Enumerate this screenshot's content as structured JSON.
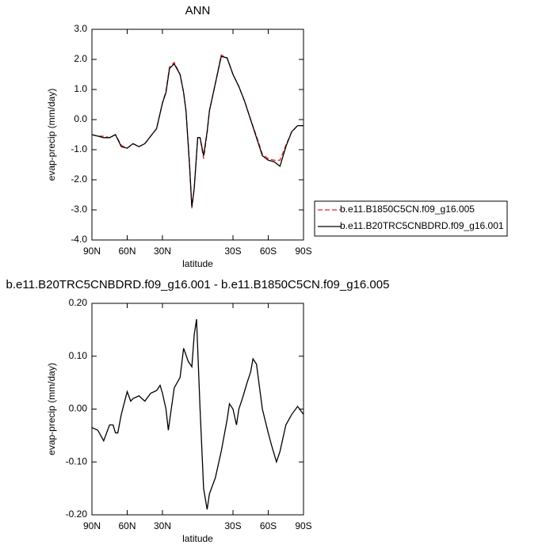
{
  "chart_data": [
    {
      "type": "line",
      "title": "ANN",
      "xlabel": "latitude",
      "ylabel": "evap-precip (mm/day)",
      "x": [
        90,
        85,
        80,
        75,
        70,
        65,
        60,
        55,
        50,
        45,
        40,
        35,
        30,
        27,
        24,
        20,
        15,
        12,
        10,
        7,
        5,
        3,
        0,
        -2,
        -5,
        -8,
        -10,
        -15,
        -20,
        -25,
        -30,
        -35,
        -40,
        -45,
        -50,
        -55,
        -60,
        -65,
        -70,
        -75,
        -80,
        -85,
        -90
      ],
      "series": [
        {
          "name": "b.e11.B1850C5CN.f09_g16.005",
          "color": "#e8262b",
          "linestyle": "dashed",
          "values": [
            -0.5,
            -0.55,
            -0.55,
            -0.6,
            -0.5,
            -0.85,
            -0.95,
            -0.8,
            -0.9,
            -0.8,
            -0.55,
            -0.3,
            0.55,
            0.95,
            1.75,
            1.9,
            1.5,
            0.9,
            0.3,
            -1.4,
            -2.95,
            -2.3,
            -0.6,
            -0.6,
            -1.3,
            -0.45,
            0.3,
            1.2,
            2.15,
            2.05,
            1.5,
            1.1,
            0.6,
            0.0,
            -0.55,
            -1.15,
            -1.3,
            -1.35,
            -1.35,
            -0.85,
            -0.4,
            -0.2,
            -0.2
          ]
        },
        {
          "name": "b.e11.B20TRC5CNBDRD.f09_g16.001",
          "color": "#000000",
          "linestyle": "solid",
          "values": [
            -0.5,
            -0.55,
            -0.6,
            -0.6,
            -0.5,
            -0.9,
            -0.95,
            -0.8,
            -0.9,
            -0.8,
            -0.55,
            -0.3,
            0.55,
            0.9,
            1.7,
            1.85,
            1.5,
            0.9,
            0.3,
            -1.5,
            -2.9,
            -2.3,
            -0.6,
            -0.6,
            -1.2,
            -0.4,
            0.3,
            1.2,
            2.1,
            2.05,
            1.5,
            1.1,
            0.6,
            0.0,
            -0.6,
            -1.2,
            -1.35,
            -1.4,
            -1.55,
            -0.9,
            -0.4,
            -0.2,
            -0.2
          ]
        }
      ],
      "xlim": [
        90,
        -90
      ],
      "ylim": [
        -4,
        3
      ],
      "xticks": [
        {
          "value": 90,
          "label": "90N"
        },
        {
          "value": 60,
          "label": "60N"
        },
        {
          "value": 30,
          "label": "30N"
        },
        {
          "value": -30,
          "label": "30S"
        },
        {
          "value": -60,
          "label": "60S"
        },
        {
          "value": -90,
          "label": "90S"
        }
      ],
      "yticks": [
        {
          "value": 3,
          "label": "3.0"
        },
        {
          "value": 2,
          "label": "2.0"
        },
        {
          "value": 1,
          "label": "1.0"
        },
        {
          "value": 0,
          "label": "0.0"
        },
        {
          "value": -1,
          "label": "-1.0"
        },
        {
          "value": -2,
          "label": "-2.0"
        },
        {
          "value": -3,
          "label": "-3.0"
        },
        {
          "value": -4,
          "label": "-4.0"
        }
      ],
      "legend": "right"
    },
    {
      "type": "line",
      "title": "b.e11.B20TRC5CNBDRD.f09_g16.001 - b.e11.B1850C5CN.f09_g16.005",
      "xlabel": "latitude",
      "ylabel": "evap-precip (mm/day)",
      "x": [
        90,
        85,
        80,
        75,
        72,
        70,
        68,
        65,
        60,
        57,
        55,
        50,
        45,
        40,
        35,
        32,
        30,
        27,
        25,
        20,
        15,
        12,
        8,
        5,
        3,
        1,
        -2,
        -5,
        -8,
        -10,
        -15,
        -20,
        -25,
        -27,
        -30,
        -33,
        -35,
        -38,
        -42,
        -45,
        -47,
        -50,
        -55,
        -60,
        -63,
        -67,
        -70,
        -75,
        -80,
        -85,
        -90
      ],
      "series": [
        {
          "color": "#000000",
          "linestyle": "solid",
          "values": [
            -0.035,
            -0.04,
            -0.06,
            -0.03,
            -0.03,
            -0.045,
            -0.045,
            -0.01,
            0.033,
            0.015,
            0.02,
            0.025,
            0.015,
            0.03,
            0.035,
            0.045,
            0.03,
            0.0,
            -0.04,
            0.04,
            0.06,
            0.115,
            0.09,
            0.08,
            0.14,
            0.17,
            0.0,
            -0.15,
            -0.19,
            -0.16,
            -0.13,
            -0.08,
            -0.02,
            0.01,
            0.0,
            -0.03,
            0.0,
            0.02,
            0.05,
            0.07,
            0.095,
            0.085,
            0.0,
            -0.045,
            -0.07,
            -0.1,
            -0.08,
            -0.03,
            -0.01,
            0.005,
            -0.01
          ]
        }
      ],
      "xlim": [
        90,
        -90
      ],
      "ylim": [
        -0.2,
        0.2
      ],
      "xticks": [
        {
          "value": 90,
          "label": "90N"
        },
        {
          "value": 60,
          "label": "60N"
        },
        {
          "value": 30,
          "label": "30N"
        },
        {
          "value": -30,
          "label": "30S"
        },
        {
          "value": -60,
          "label": "60S"
        },
        {
          "value": -90,
          "label": "90S"
        }
      ],
      "yticks": [
        {
          "value": 0.2,
          "label": "0.20"
        },
        {
          "value": 0.1,
          "label": "0.10"
        },
        {
          "value": 0,
          "label": "0.00"
        },
        {
          "value": -0.1,
          "label": "-0.10"
        },
        {
          "value": -0.2,
          "label": "-0.20"
        }
      ]
    }
  ]
}
